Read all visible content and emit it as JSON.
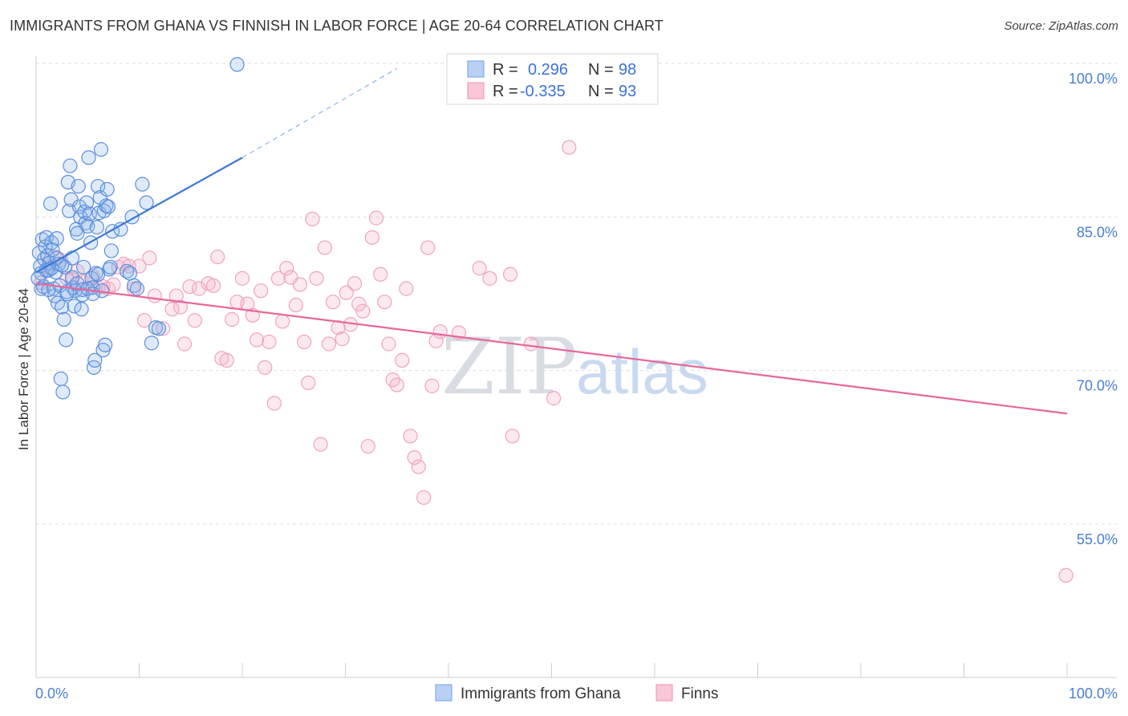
{
  "header": {
    "title": "IMMIGRANTS FROM GHANA VS FINNISH IN LABOR FORCE | AGE 20-64 CORRELATION CHART",
    "source": "Source: ZipAtlas.com"
  },
  "watermark": {
    "zip": "ZIP",
    "atlas": "atlas"
  },
  "legend": {
    "rows": [
      {
        "r_label": "R =",
        "r_value": "0.296",
        "n_label": "N =",
        "n_value": "98",
        "color": "#6fa0e6"
      },
      {
        "r_label": "R =",
        "r_value": "-0.335",
        "n_label": "N =",
        "n_value": "93",
        "color": "#f08fb0"
      }
    ]
  },
  "chart_data": {
    "type": "scatter",
    "title": "IMMIGRANTS FROM GHANA VS FINNISH IN LABOR FORCE | AGE 20-64 CORRELATION CHART",
    "xlabel": "",
    "ylabel": "In Labor Force | Age 20-64",
    "xlim": [
      0,
      100
    ],
    "ylim": [
      40,
      101
    ],
    "x_tick_labels": [
      "0.0%",
      "100.0%"
    ],
    "y_ticks": [
      55,
      70,
      85,
      100
    ],
    "y_tick_labels": [
      "55.0%",
      "70.0%",
      "85.0%",
      "100.0%"
    ],
    "grid": true,
    "legend_position": "top-center",
    "colors": {
      "ghana": "#3a78d4",
      "finns": "#e8679a"
    },
    "series": [
      {
        "name": "Immigrants from Ghana",
        "color": "#3a78d4",
        "trend": {
          "x_solid": [
            0,
            20
          ],
          "y_solid": [
            79.6,
            90.8
          ],
          "x_dash": [
            20,
            35
          ],
          "y_dash": [
            90.8,
            99.5
          ]
        },
        "points": [
          [
            0.3,
            81.5
          ],
          [
            0.4,
            80.2
          ],
          [
            0.5,
            79.5
          ],
          [
            0.6,
            82.8
          ],
          [
            0.7,
            78.2
          ],
          [
            0.8,
            80.9
          ],
          [
            0.9,
            82.1
          ],
          [
            1.0,
            83.0
          ],
          [
            1.1,
            81.2
          ],
          [
            1.2,
            79.8
          ],
          [
            1.3,
            80.5
          ],
          [
            1.4,
            86.3
          ],
          [
            1.5,
            82.5
          ],
          [
            1.6,
            81.8
          ],
          [
            1.7,
            78.0
          ],
          [
            1.8,
            77.3
          ],
          [
            1.9,
            79.6
          ],
          [
            2.0,
            82.9
          ],
          [
            2.1,
            76.6
          ],
          [
            2.2,
            80.4
          ],
          [
            2.3,
            78.3
          ],
          [
            2.4,
            69.2
          ],
          [
            2.5,
            76.2
          ],
          [
            2.6,
            67.9
          ],
          [
            2.7,
            75.0
          ],
          [
            2.8,
            80.1
          ],
          [
            2.9,
            73.0
          ],
          [
            3.0,
            77.7
          ],
          [
            3.1,
            88.4
          ],
          [
            3.2,
            85.6
          ],
          [
            3.3,
            90.0
          ],
          [
            3.4,
            86.7
          ],
          [
            3.5,
            81.0
          ],
          [
            3.6,
            78.1
          ],
          [
            3.7,
            76.3
          ],
          [
            3.8,
            77.8
          ],
          [
            3.9,
            83.8
          ],
          [
            4.0,
            83.4
          ],
          [
            4.1,
            88.0
          ],
          [
            4.2,
            86.0
          ],
          [
            4.3,
            85.0
          ],
          [
            4.4,
            76.0
          ],
          [
            4.5,
            77.4
          ],
          [
            4.6,
            80.1
          ],
          [
            4.7,
            85.5
          ],
          [
            4.8,
            84.4
          ],
          [
            4.9,
            86.4
          ],
          [
            5.0,
            84.1
          ],
          [
            5.1,
            90.8
          ],
          [
            5.2,
            85.3
          ],
          [
            5.3,
            82.5
          ],
          [
            5.4,
            79.0
          ],
          [
            5.5,
            78.1
          ],
          [
            5.6,
            70.3
          ],
          [
            5.7,
            71.0
          ],
          [
            5.8,
            79.5
          ],
          [
            5.9,
            84.0
          ],
          [
            6.0,
            88.0
          ],
          [
            6.1,
            85.4
          ],
          [
            6.2,
            86.9
          ],
          [
            6.3,
            91.6
          ],
          [
            6.4,
            77.8
          ],
          [
            6.5,
            72.0
          ],
          [
            6.6,
            85.6
          ],
          [
            6.7,
            72.5
          ],
          [
            6.8,
            86.1
          ],
          [
            6.9,
            87.7
          ],
          [
            7.0,
            86.0
          ],
          [
            7.1,
            79.9
          ],
          [
            7.2,
            80.1
          ],
          [
            7.3,
            81.7
          ],
          [
            7.4,
            83.6
          ],
          [
            8.2,
            83.8
          ],
          [
            8.8,
            79.7
          ],
          [
            9.1,
            79.5
          ],
          [
            9.3,
            85.0
          ],
          [
            9.5,
            78.3
          ],
          [
            9.8,
            78.0
          ],
          [
            10.3,
            88.2
          ],
          [
            10.7,
            86.4
          ],
          [
            11.2,
            72.7
          ],
          [
            11.6,
            74.2
          ],
          [
            11.9,
            74.1
          ],
          [
            0.2,
            79.0
          ],
          [
            0.5,
            78.0
          ],
          [
            1.0,
            79.8
          ],
          [
            1.5,
            80.0
          ],
          [
            2.0,
            81.0
          ],
          [
            2.5,
            80.3
          ],
          [
            3.0,
            77.5
          ],
          [
            3.5,
            79.1
          ],
          [
            4.0,
            78.5
          ],
          [
            4.5,
            77.9
          ],
          [
            5.0,
            78.0
          ],
          [
            5.5,
            77.5
          ],
          [
            6.0,
            79.4
          ],
          [
            19.5,
            99.9
          ],
          [
            1.2,
            77.9
          ]
        ]
      },
      {
        "name": "Finns",
        "color": "#e8679a",
        "trend": {
          "x_solid": [
            0,
            100
          ],
          "y_solid": [
            78.5,
            65.8
          ]
        },
        "points": [
          [
            0.5,
            78.6
          ],
          [
            1.2,
            80.1
          ],
          [
            1.8,
            81.1
          ],
          [
            2.4,
            80.8
          ],
          [
            3.0,
            79.0
          ],
          [
            3.5,
            78.9
          ],
          [
            4.0,
            79.7
          ],
          [
            4.5,
            78.7
          ],
          [
            5.0,
            78.0
          ],
          [
            5.5,
            79.2
          ],
          [
            6.0,
            78.1
          ],
          [
            6.5,
            78.2
          ],
          [
            7.0,
            78.0
          ],
          [
            7.5,
            78.4
          ],
          [
            8.0,
            80.1
          ],
          [
            8.5,
            80.4
          ],
          [
            9.0,
            80.2
          ],
          [
            9.5,
            78.0
          ],
          [
            10.0,
            80.2
          ],
          [
            10.5,
            74.9
          ],
          [
            11.0,
            81.0
          ],
          [
            11.5,
            77.3
          ],
          [
            12.3,
            74.1
          ],
          [
            13.2,
            76.0
          ],
          [
            13.6,
            77.3
          ],
          [
            14.0,
            76.2
          ],
          [
            14.4,
            72.6
          ],
          [
            14.9,
            78.2
          ],
          [
            15.4,
            74.9
          ],
          [
            15.8,
            78.0
          ],
          [
            16.7,
            78.5
          ],
          [
            17.2,
            78.3
          ],
          [
            17.6,
            81.1
          ],
          [
            18.0,
            71.2
          ],
          [
            18.5,
            71.0
          ],
          [
            19.0,
            75.0
          ],
          [
            19.5,
            76.7
          ],
          [
            20.0,
            79.0
          ],
          [
            20.5,
            76.5
          ],
          [
            21.0,
            75.4
          ],
          [
            21.4,
            73.0
          ],
          [
            21.8,
            77.8
          ],
          [
            22.2,
            70.3
          ],
          [
            22.6,
            72.8
          ],
          [
            23.1,
            66.8
          ],
          [
            23.5,
            79.0
          ],
          [
            23.9,
            74.8
          ],
          [
            24.3,
            80.0
          ],
          [
            24.7,
            79.1
          ],
          [
            25.2,
            76.4
          ],
          [
            25.6,
            78.4
          ],
          [
            26.0,
            72.8
          ],
          [
            26.4,
            68.8
          ],
          [
            26.8,
            84.8
          ],
          [
            27.2,
            79.0
          ],
          [
            27.6,
            62.8
          ],
          [
            28.0,
            82.0
          ],
          [
            28.4,
            72.6
          ],
          [
            28.8,
            76.7
          ],
          [
            29.3,
            74.2
          ],
          [
            29.7,
            73.1
          ],
          [
            30.1,
            77.6
          ],
          [
            30.5,
            74.5
          ],
          [
            30.9,
            78.5
          ],
          [
            31.3,
            76.5
          ],
          [
            31.7,
            75.8
          ],
          [
            32.2,
            62.6
          ],
          [
            32.6,
            83.0
          ],
          [
            33.0,
            84.9
          ],
          [
            33.4,
            79.4
          ],
          [
            33.8,
            76.7
          ],
          [
            34.2,
            72.6
          ],
          [
            34.6,
            69.1
          ],
          [
            35.0,
            68.6
          ],
          [
            35.5,
            71.0
          ],
          [
            35.9,
            78.0
          ],
          [
            36.3,
            63.6
          ],
          [
            36.7,
            61.5
          ],
          [
            37.1,
            60.6
          ],
          [
            37.6,
            57.6
          ],
          [
            38.0,
            82.0
          ],
          [
            38.4,
            68.5
          ],
          [
            38.8,
            72.9
          ],
          [
            39.2,
            73.8
          ],
          [
            41.0,
            73.7
          ],
          [
            43.0,
            80.0
          ],
          [
            44.0,
            79.0
          ],
          [
            46.0,
            79.4
          ],
          [
            46.2,
            63.6
          ],
          [
            48.0,
            72.6
          ],
          [
            50.2,
            67.3
          ],
          [
            51.7,
            91.8
          ],
          [
            99.9,
            50.0
          ]
        ]
      }
    ]
  },
  "bottom_legend": {
    "items": [
      {
        "label": "Immigrants from Ghana",
        "color": "#3a78d4"
      },
      {
        "label": "Finns",
        "color": "#e8679a"
      }
    ]
  }
}
